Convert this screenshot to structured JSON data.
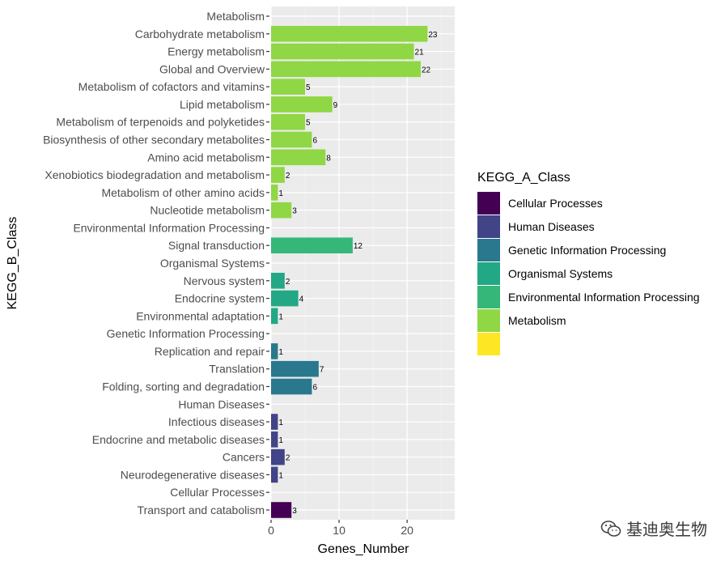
{
  "chart_data": {
    "type": "bar",
    "orientation": "horizontal",
    "xlabel": "Genes_Number",
    "ylabel": "KEGG_B_Class",
    "xlim": [
      0,
      27
    ],
    "xticks": [
      0,
      10,
      20
    ],
    "grid": true,
    "legend_title": "KEGG_A_Class",
    "legend_position": "right",
    "legend": [
      {
        "name": "Cellular Processes",
        "color": "#440154"
      },
      {
        "name": "Human Diseases",
        "color": "#414487"
      },
      {
        "name": "Genetic Information Processing",
        "color": "#2a788e"
      },
      {
        "name": "Organismal Systems",
        "color": "#22a884"
      },
      {
        "name": "Environmental Information Processing",
        "color": "#35b779"
      },
      {
        "name": "Metabolism",
        "color": "#8fd744"
      },
      {
        "name": "",
        "color": "#fde725"
      }
    ],
    "rows": [
      {
        "label": "Metabolism",
        "value": null,
        "color": ""
      },
      {
        "label": "Carbohydrate metabolism",
        "value": 23,
        "color": "#8fd744"
      },
      {
        "label": "Energy metabolism",
        "value": 21,
        "color": "#8fd744"
      },
      {
        "label": "Global and Overview",
        "value": 22,
        "color": "#8fd744"
      },
      {
        "label": "Metabolism of cofactors and vitamins",
        "value": 5,
        "color": "#8fd744"
      },
      {
        "label": "Lipid metabolism",
        "value": 9,
        "color": "#8fd744"
      },
      {
        "label": "Metabolism of terpenoids and polyketides",
        "value": 5,
        "color": "#8fd744"
      },
      {
        "label": "Biosynthesis of other secondary metabolites",
        "value": 6,
        "color": "#8fd744"
      },
      {
        "label": "Amino acid metabolism",
        "value": 8,
        "color": "#8fd744"
      },
      {
        "label": "Xenobiotics biodegradation and metabolism",
        "value": 2,
        "color": "#8fd744"
      },
      {
        "label": "Metabolism of other amino acids",
        "value": 1,
        "color": "#8fd744"
      },
      {
        "label": "Nucleotide metabolism",
        "value": 3,
        "color": "#8fd744"
      },
      {
        "label": "Environmental Information Processing",
        "value": null,
        "color": ""
      },
      {
        "label": "Signal transduction",
        "value": 12,
        "color": "#35b779"
      },
      {
        "label": "Organismal Systems",
        "value": null,
        "color": ""
      },
      {
        "label": "Nervous system",
        "value": 2,
        "color": "#22a884"
      },
      {
        "label": "Endocrine system",
        "value": 4,
        "color": "#22a884"
      },
      {
        "label": "Environmental adaptation",
        "value": 1,
        "color": "#22a884"
      },
      {
        "label": "Genetic Information Processing",
        "value": null,
        "color": ""
      },
      {
        "label": "Replication and repair",
        "value": 1,
        "color": "#2a788e"
      },
      {
        "label": "Translation",
        "value": 7,
        "color": "#2a788e"
      },
      {
        "label": "Folding, sorting and degradation",
        "value": 6,
        "color": "#2a788e"
      },
      {
        "label": "Human Diseases",
        "value": null,
        "color": ""
      },
      {
        "label": "Infectious diseases",
        "value": 1,
        "color": "#414487"
      },
      {
        "label": "Endocrine and metabolic diseases",
        "value": 1,
        "color": "#414487"
      },
      {
        "label": "Cancers",
        "value": 2,
        "color": "#414487"
      },
      {
        "label": "Neurodegenerative diseases",
        "value": 1,
        "color": "#414487"
      },
      {
        "label": "Cellular Processes",
        "value": null,
        "color": ""
      },
      {
        "label": "Transport and catabolism",
        "value": 3,
        "color": "#440154"
      }
    ]
  },
  "watermark": {
    "text": "基迪奥生物",
    "icon": "wechat-icon"
  }
}
